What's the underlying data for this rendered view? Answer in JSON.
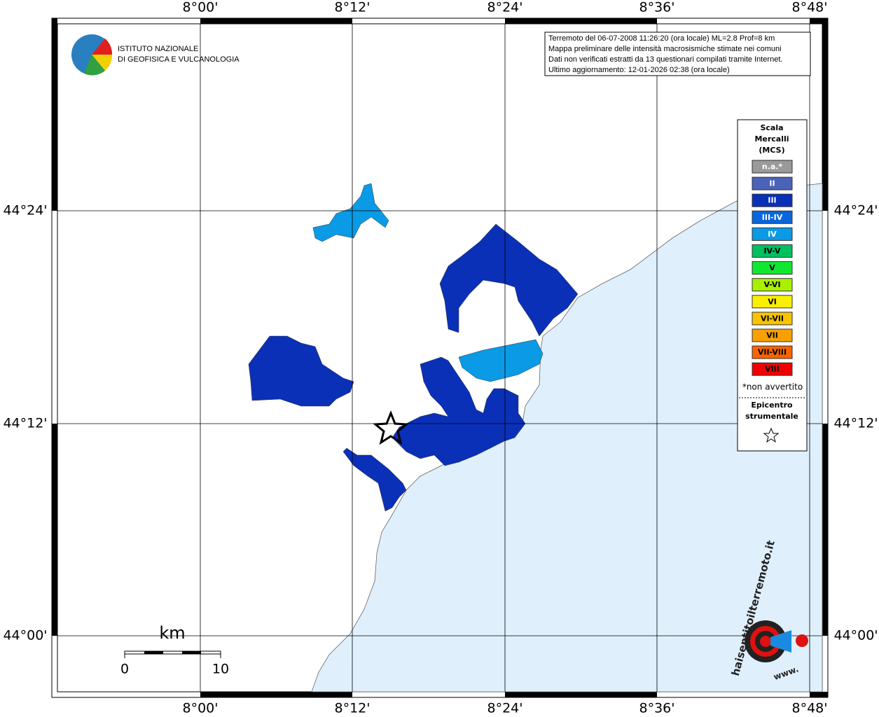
{
  "map": {
    "lon_labels": [
      "8°00'",
      "8°12'",
      "8°24'",
      "8°36'",
      "8°48'"
    ],
    "lat_labels": [
      "44°24'",
      "44°12'",
      "44°00'"
    ],
    "info": [
      "Terremoto del 06-07-2008 11:26:20 (ora locale) ML=2.8 Prof=8 km",
      "Mappa preliminare delle intensità macrosismiche stimate nei comuni",
      "Dati non verificati estratti da 13 questionari compilati tramite Internet.",
      "Ultimo aggiornamento: 12-01-2026 02:38 (ora locale)"
    ],
    "institute": [
      "ISTITUTO NAZIONALE",
      "DI GEOFISICA E VULCANOLOGIA"
    ],
    "legend": {
      "title": [
        "Scala",
        "Mercalli",
        "(MCS)"
      ],
      "items": [
        {
          "label": "n.a.*",
          "color": "#9a9a9a"
        },
        {
          "label": "II",
          "color": "#4a62b8"
        },
        {
          "label": "III",
          "color": "#0a30b8"
        },
        {
          "label": "III-IV",
          "color": "#0a66dc"
        },
        {
          "label": "IV",
          "color": "#0a9ae6"
        },
        {
          "label": "IV-V",
          "color": "#00c060"
        },
        {
          "label": "V",
          "color": "#10e830"
        },
        {
          "label": "V-VI",
          "color": "#a8f000"
        },
        {
          "label": "VI",
          "color": "#f8f000"
        },
        {
          "label": "VI-VII",
          "color": "#f8c400"
        },
        {
          "label": "VII",
          "color": "#f8a000"
        },
        {
          "label": "VII-VIII",
          "color": "#f86400"
        },
        {
          "label": "VIII",
          "color": "#f00000"
        }
      ],
      "note": "*non avvertito",
      "epicenter": [
        "Epicentro",
        "strumentale"
      ]
    },
    "scale": {
      "unit": "km",
      "labels": [
        "0",
        "10"
      ]
    },
    "site_logo": {
      "url": "haisentitoilterremoto.it",
      "prefix": "www."
    }
  }
}
